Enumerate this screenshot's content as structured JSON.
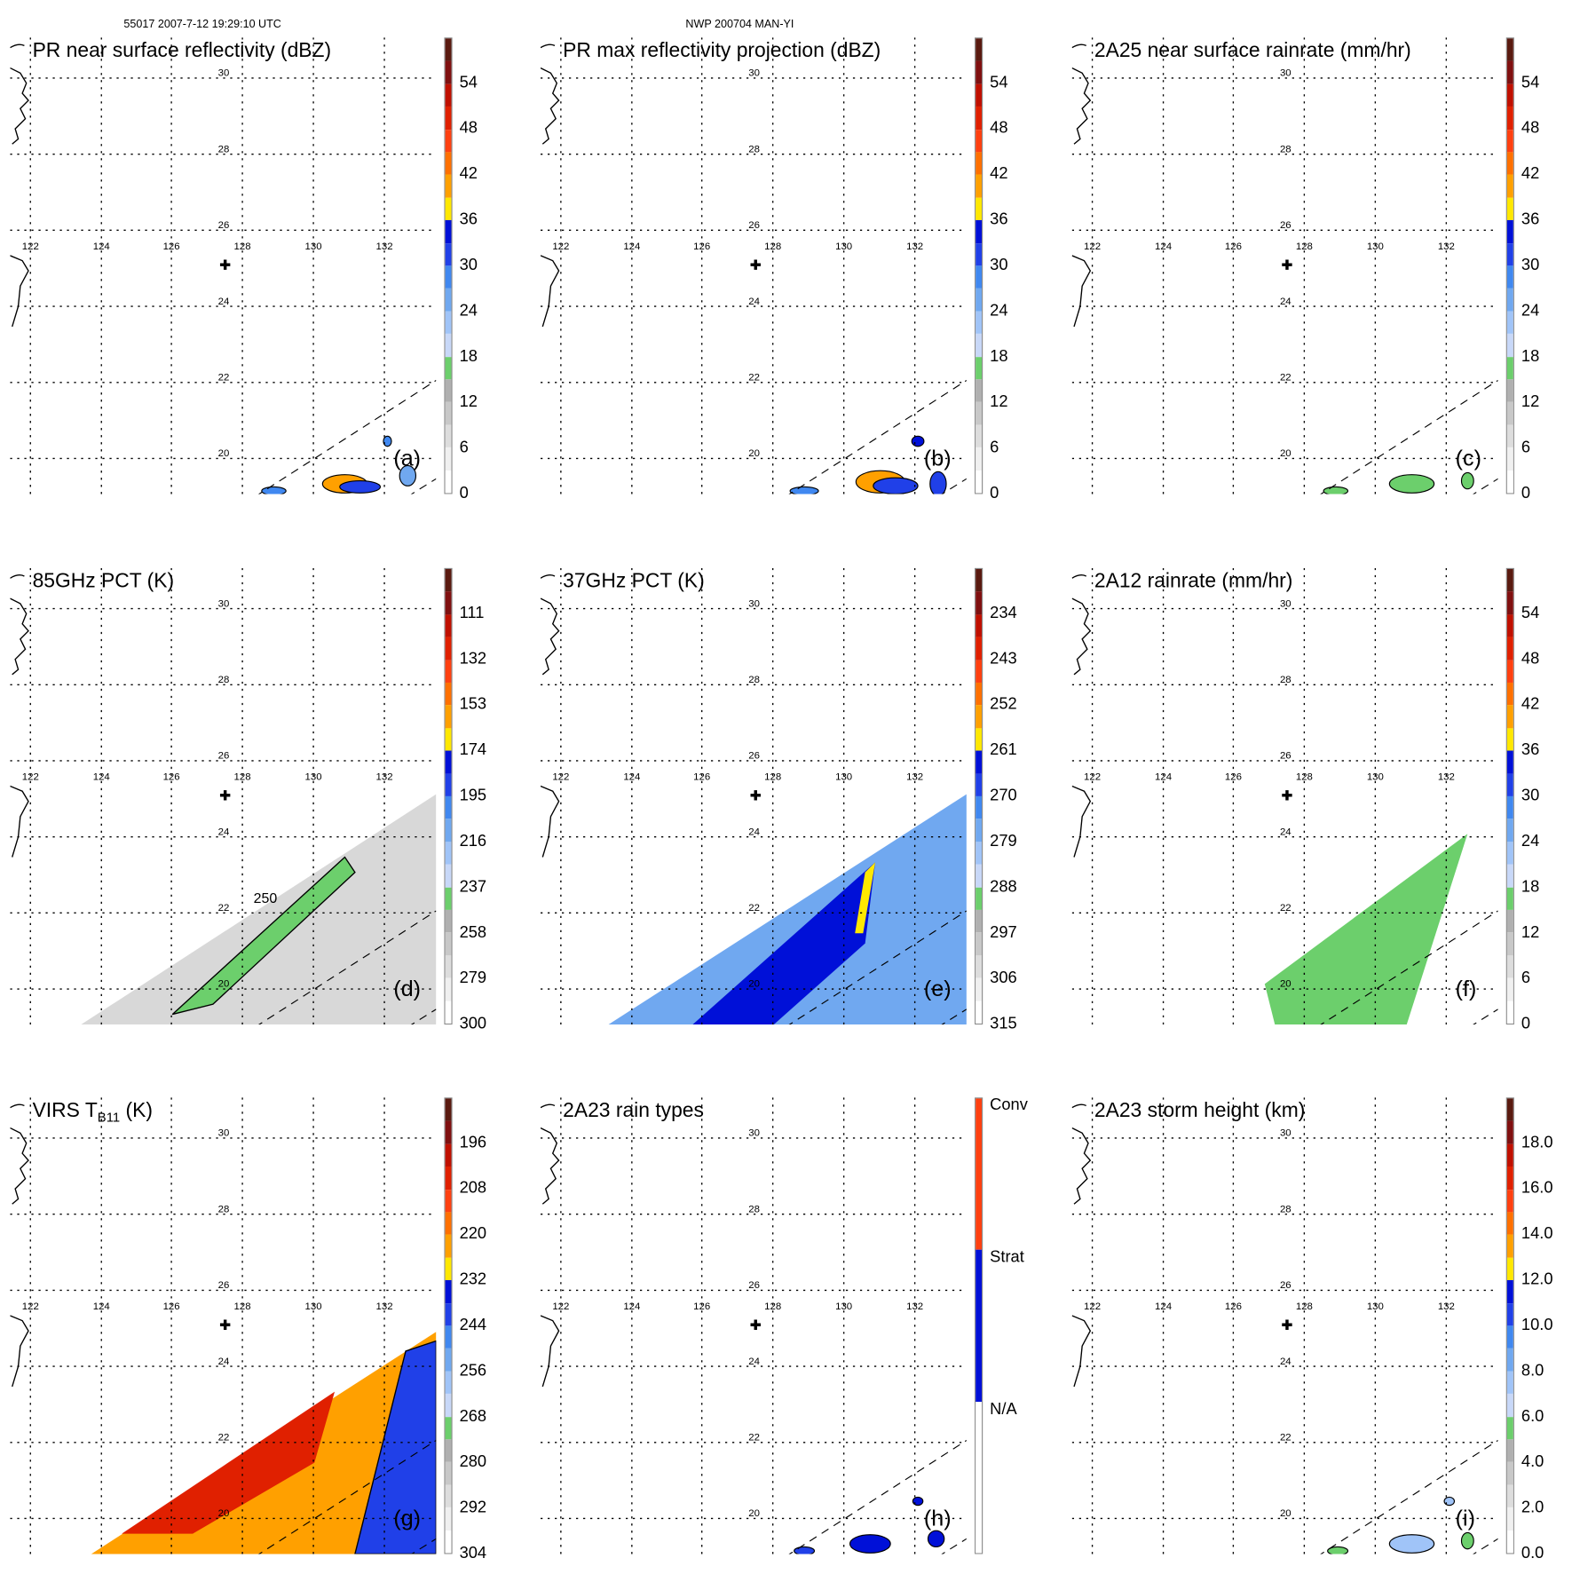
{
  "header": {
    "left": "55017 2007-7-12 19:29:10 UTC",
    "center": "NWP 200704 MAN-YI"
  },
  "grid": {
    "lat_labels": [
      "30",
      "28",
      "26",
      "24",
      "22",
      "20"
    ],
    "lon_labels": [
      "122",
      "124",
      "126",
      "128",
      "130",
      "132"
    ]
  },
  "panels": [
    {
      "title": "PR near surface reflectivity (dBZ)",
      "letter": "(a)",
      "ticks": [
        "54",
        "48",
        "42",
        "36",
        "30",
        "24",
        "18",
        "12",
        "6",
        "0"
      ],
      "field": "pr"
    },
    {
      "title": "PR max reflectivity projection (dBZ)",
      "letter": "(b)",
      "ticks": [
        "54",
        "48",
        "42",
        "36",
        "30",
        "24",
        "18",
        "12",
        "6",
        "0"
      ],
      "field": "prmax"
    },
    {
      "title": "2A25 near surface rainrate (mm/hr)",
      "letter": "(c)",
      "ticks": [
        "54",
        "48",
        "42",
        "36",
        "30",
        "24",
        "18",
        "12",
        "6",
        "0"
      ],
      "field": "rr25"
    },
    {
      "title": "85GHz PCT (K)",
      "letter": "(d)",
      "ticks": [
        "111",
        "132",
        "153",
        "174",
        "195",
        "216",
        "237",
        "258",
        "279",
        "300"
      ],
      "field": "pct85"
    },
    {
      "title": "37GHz PCT (K)",
      "letter": "(e)",
      "ticks": [
        "234",
        "243",
        "252",
        "261",
        "270",
        "279",
        "288",
        "297",
        "306",
        "315"
      ],
      "field": "pct37"
    },
    {
      "title": "2A12 rainrate (mm/hr)",
      "letter": "(f)",
      "ticks": [
        "54",
        "48",
        "42",
        "36",
        "30",
        "24",
        "18",
        "12",
        "6",
        "0"
      ],
      "field": "rr12"
    },
    {
      "title": "VIRS T",
      "title_sub": "B11",
      "title_suffix": " (K)",
      "letter": "(g)",
      "ticks": [
        "196",
        "208",
        "220",
        "232",
        "244",
        "256",
        "268",
        "280",
        "292",
        "304"
      ],
      "field": "virs"
    },
    {
      "title": "2A23 rain types",
      "letter": "(h)",
      "ticks": [
        "Conv",
        "Strat",
        "N/A"
      ],
      "field": "types"
    },
    {
      "title": "2A23 storm height (km)",
      "letter": "(i)",
      "ticks": [
        "18.0",
        "16.0",
        "14.0",
        "12.0",
        "10.0",
        "8.0",
        "6.0",
        "4.0",
        "2.0",
        "0.0"
      ],
      "field": "height"
    }
  ],
  "contour_labels": {
    "d": "250"
  },
  "colors": {
    "scale": [
      "#ffffff",
      "#f0f0f0",
      "#dddddd",
      "#c8c8c8",
      "#b0b0b0",
      "#6ccf6c",
      "#c8d8f8",
      "#a0c4f8",
      "#70a8f0",
      "#4088f0",
      "#2040e8",
      "#0010d8",
      "#ffe800",
      "#ffa000",
      "#ff7000",
      "#ff4010",
      "#e02000",
      "#c01000",
      "#801010",
      "#5a1a10"
    ],
    "types": [
      "#ffffff",
      "#0010d8",
      "#ff4010"
    ]
  }
}
